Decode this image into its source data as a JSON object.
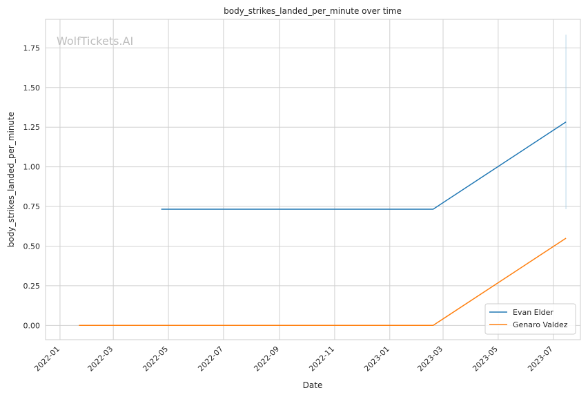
{
  "chart_data": {
    "type": "line",
    "title": "body_strikes_landed_per_minute over time",
    "xlabel": "Date",
    "ylabel": "body_strikes_landed_per_minute",
    "watermark": "WolfTickets.AI",
    "x_ticks": [
      "2022-01",
      "2022-03",
      "2022-05",
      "2022-07",
      "2022-09",
      "2022-11",
      "2023-01",
      "2023-03",
      "2023-05",
      "2023-07"
    ],
    "y_ticks": [
      "0.00",
      "0.25",
      "0.50",
      "0.75",
      "1.00",
      "1.25",
      "1.50",
      "1.75"
    ],
    "xlim": [
      "2021-12-16",
      "2023-07-31"
    ],
    "ylim": [
      -0.09,
      1.93
    ],
    "grid": true,
    "legend_position": "lower right",
    "series": [
      {
        "name": "Evan Elder",
        "color": "#1f77b4",
        "points": [
          {
            "x": "2022-04-23",
            "y": 0.733
          },
          {
            "x": "2023-02-18",
            "y": 0.733
          },
          {
            "x": "2023-07-15",
            "y": 1.283
          }
        ]
      },
      {
        "name": "Genaro Valdez",
        "color": "#ff7f0e",
        "points": [
          {
            "x": "2022-01-22",
            "y": 0.0
          },
          {
            "x": "2023-02-18",
            "y": 0.0
          },
          {
            "x": "2023-07-15",
            "y": 0.55
          }
        ]
      }
    ],
    "range_band": {
      "x": "2023-07-15",
      "y_low": 0.733,
      "y_high": 1.833,
      "color": "#a6cde3"
    }
  }
}
